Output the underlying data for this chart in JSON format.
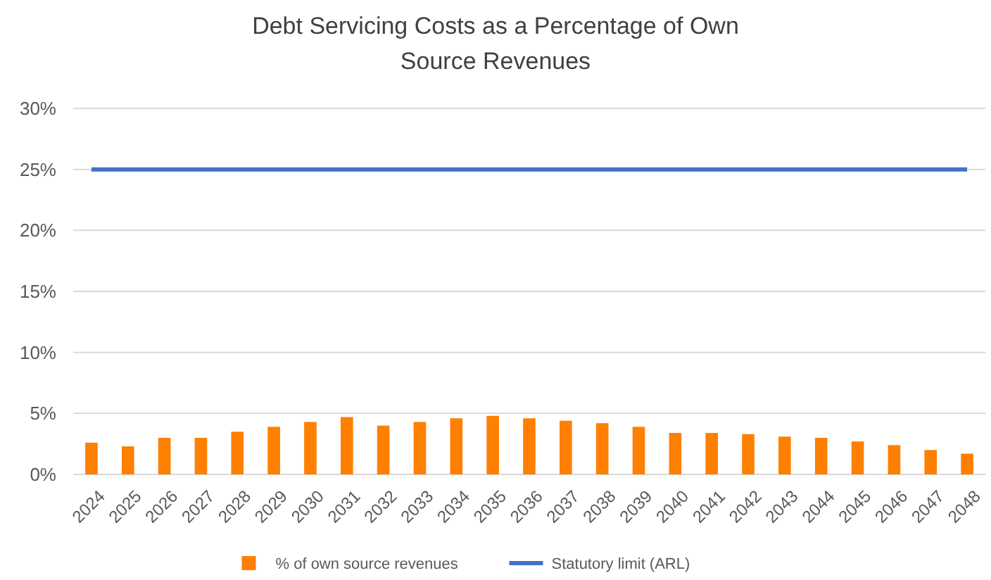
{
  "chart_data": {
    "type": "bar",
    "title": "Debt Servicing Costs as a Percentage of Own Source Revenues",
    "categories": [
      "2024",
      "2025",
      "2026",
      "2027",
      "2028",
      "2029",
      "2030",
      "2031",
      "2032",
      "2033",
      "2034",
      "2035",
      "2036",
      "2037",
      "2038",
      "2039",
      "2040",
      "2041",
      "2042",
      "2043",
      "2044",
      "2045",
      "2046",
      "2047",
      "2048"
    ],
    "series": [
      {
        "name": "% of own source revenues",
        "color": "#ff7f00",
        "values": [
          2.6,
          2.3,
          3.0,
          3.0,
          3.5,
          3.9,
          4.3,
          4.7,
          4.0,
          4.3,
          4.6,
          4.8,
          4.6,
          4.4,
          4.2,
          3.9,
          3.4,
          3.4,
          3.3,
          3.1,
          3.0,
          2.7,
          2.4,
          2.0,
          1.7
        ]
      },
      {
        "name": "Statutory limit (ARL)",
        "type": "line",
        "color": "#4472c4",
        "values": [
          25,
          25,
          25,
          25,
          25,
          25,
          25,
          25,
          25,
          25,
          25,
          25,
          25,
          25,
          25,
          25,
          25,
          25,
          25,
          25,
          25,
          25,
          25,
          25,
          25
        ]
      }
    ],
    "ylim": [
      0,
      30
    ],
    "yticks": [
      {
        "value": 0,
        "label": "0%"
      },
      {
        "value": 5,
        "label": "5%"
      },
      {
        "value": 10,
        "label": "10%"
      },
      {
        "value": 15,
        "label": "15%"
      },
      {
        "value": 20,
        "label": "20%"
      },
      {
        "value": 25,
        "label": "25%"
      },
      {
        "value": 30,
        "label": "30%"
      }
    ],
    "grid": "y",
    "legend": "bottom",
    "marker": "none",
    "line_style": "solid"
  }
}
